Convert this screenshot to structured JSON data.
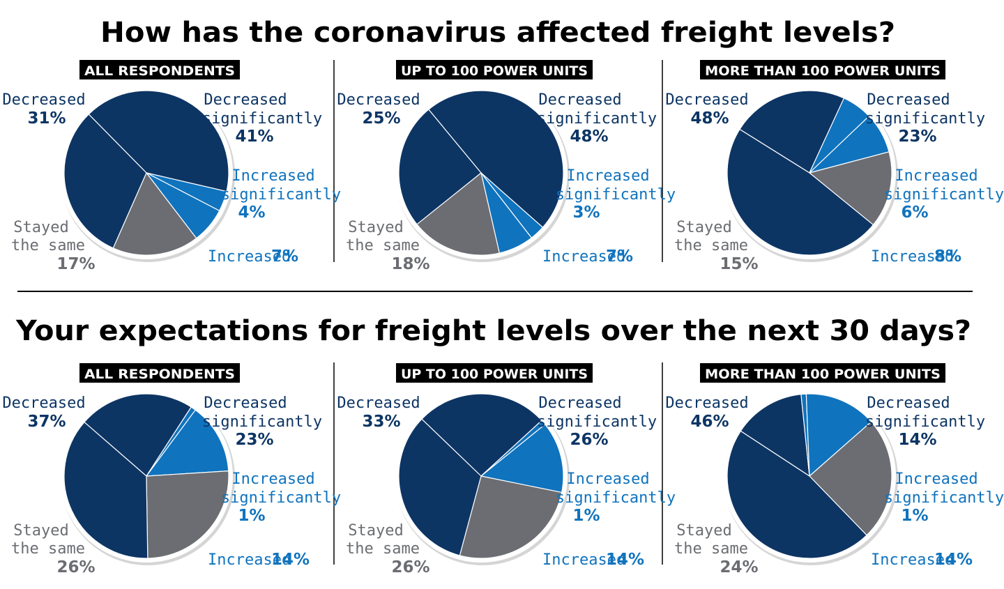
{
  "colors": {
    "decreased_significantly": "#0d3564",
    "decreased": "#0d3564",
    "stayed_same": "#6b6d72",
    "increased": "#1073bd",
    "increased_significantly": "#1073bd",
    "text_dark": "#0d3564",
    "text_blue": "#1073bd",
    "text_gray": "#6b6d72",
    "badge_bg": "#000000"
  },
  "chart_data": [
    {
      "type": "pie",
      "title": "How has the coronavirus affected freight levels?",
      "subtitle": "ALL RESPONDENTS",
      "categories": [
        "Decreased significantly",
        "Increased significantly",
        "Increased",
        "Stayed the same",
        "Decreased"
      ],
      "values": [
        41,
        4,
        7,
        17,
        31
      ],
      "labels": {
        "decreased": "Decreased",
        "decreased_sig_1": "Decreased",
        "decreased_sig_2": "significantly",
        "increased_sig_1": "Increased",
        "increased_sig_2": "significantly",
        "increased": "Increased",
        "stayed_1": "Stayed",
        "stayed_2": "the same"
      },
      "percents": {
        "decreased_sig": "41%",
        "increased_sig": "4%",
        "increased": "7%",
        "stayed": "17%",
        "decreased": "31%"
      }
    },
    {
      "type": "pie",
      "title": "How has the coronavirus affected freight levels?",
      "subtitle": "UP TO 100 POWER UNITS",
      "categories": [
        "Decreased significantly",
        "Increased significantly",
        "Increased",
        "Stayed the same",
        "Decreased"
      ],
      "values": [
        48,
        3,
        7,
        18,
        25
      ],
      "labels": {
        "decreased": "Decreased",
        "decreased_sig_1": "Decreased",
        "decreased_sig_2": "significantly",
        "increased_sig_1": "Increased",
        "increased_sig_2": "significantly",
        "increased": "Increased",
        "stayed_1": "Stayed",
        "stayed_2": "the same"
      },
      "percents": {
        "decreased_sig": "48%",
        "increased_sig": "3%",
        "increased": "7%",
        "stayed": "18%",
        "decreased": "25%"
      }
    },
    {
      "type": "pie",
      "title": "How has the coronavirus affected freight levels?",
      "subtitle": "MORE THAN 100 POWER UNITS",
      "categories": [
        "Decreased significantly",
        "Increased significantly",
        "Increased",
        "Stayed the same",
        "Decreased"
      ],
      "values": [
        23,
        6,
        8,
        15,
        48
      ],
      "labels": {
        "decreased": "Decreased",
        "decreased_sig_1": "Decreased",
        "decreased_sig_2": "significantly",
        "increased_sig_1": "Increased",
        "increased_sig_2": "significantly",
        "increased": "Increased",
        "stayed_1": "Stayed",
        "stayed_2": "the same"
      },
      "percents": {
        "decreased_sig": "23%",
        "increased_sig": "6%",
        "increased": "8%",
        "stayed": "15%",
        "decreased": "48%"
      }
    },
    {
      "type": "pie",
      "title": "Your expectations for freight levels over the next 30 days?",
      "subtitle": "ALL RESPONDENTS",
      "categories": [
        "Decreased significantly",
        "Increased significantly",
        "Increased",
        "Stayed the same",
        "Decreased"
      ],
      "values": [
        23,
        1,
        14,
        26,
        37
      ],
      "labels": {
        "decreased": "Decreased",
        "decreased_sig_1": "Decreased",
        "decreased_sig_2": "significantly",
        "increased_sig_1": "Increased",
        "increased_sig_2": "significantly",
        "increased": "Increased",
        "stayed_1": "Stayed",
        "stayed_2": "the same"
      },
      "percents": {
        "decreased_sig": "23%",
        "increased_sig": "1%",
        "increased": "14%",
        "stayed": "26%",
        "decreased": "37%"
      }
    },
    {
      "type": "pie",
      "title": "Your expectations for freight levels over the next 30 days?",
      "subtitle": "UP TO 100 POWER UNITS",
      "categories": [
        "Decreased significantly",
        "Increased significantly",
        "Increased",
        "Stayed the same",
        "Decreased"
      ],
      "values": [
        26,
        1,
        14,
        26,
        33
      ],
      "labels": {
        "decreased": "Decreased",
        "decreased_sig_1": "Decreased",
        "decreased_sig_2": "significantly",
        "increased_sig_1": "Increased",
        "increased_sig_2": "significantly",
        "increased": "Increased",
        "stayed_1": "Stayed",
        "stayed_2": "the same"
      },
      "percents": {
        "decreased_sig": "26%",
        "increased_sig": "1%",
        "increased": "14%",
        "stayed": "26%",
        "decreased": "33%"
      }
    },
    {
      "type": "pie",
      "title": "Your expectations for freight levels over the next 30 days?",
      "subtitle": "MORE THAN 100 POWER UNITS",
      "categories": [
        "Decreased significantly",
        "Increased significantly",
        "Increased",
        "Stayed the same",
        "Decreased"
      ],
      "values": [
        14,
        1,
        14,
        24,
        46
      ],
      "labels": {
        "decreased": "Decreased",
        "decreased_sig_1": "Decreased",
        "decreased_sig_2": "significantly",
        "increased_sig_1": "Increased",
        "increased_sig_2": "significantly",
        "increased": "Increased",
        "stayed_1": "Stayed",
        "stayed_2": "the same"
      },
      "percents": {
        "decreased_sig": "14%",
        "increased_sig": "1%",
        "increased": "14%",
        "stayed": "24%",
        "decreased": "46%"
      }
    }
  ],
  "section_titles": [
    "How has the coronavirus affected freight levels?",
    "Your expectations for freight levels over the next 30 days?"
  ]
}
